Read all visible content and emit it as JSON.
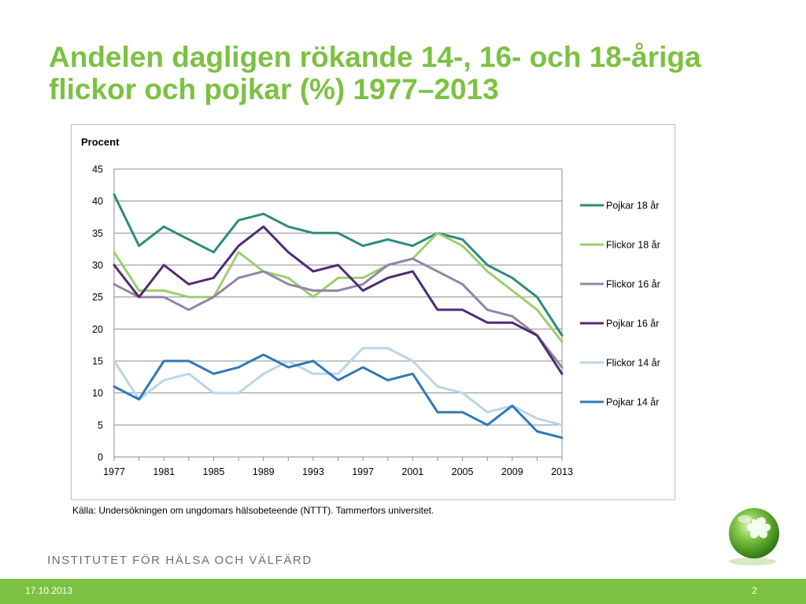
{
  "slide": {
    "title": "Andelen dagligen rökande 14-, 16- och 18-åriga flickor och pojkar (%) 1977–2013",
    "source": "Källa: Undersökningen om ungdomars hälsobeteende (NTTT). Tammerfors universitet.",
    "organization": "INSTITUTET FÖR HÄLSA OCH VÄLFÄRD",
    "footer_date": "17.10.2013",
    "page_number": "2",
    "brand_color": "#7cc142"
  },
  "chart_data": {
    "type": "line",
    "ylabel": "Procent",
    "x": [
      1977,
      1979,
      1981,
      1983,
      1985,
      1987,
      1989,
      1991,
      1993,
      1995,
      1997,
      1999,
      2001,
      2003,
      2005,
      2007,
      2009,
      2011,
      2013
    ],
    "x_tick_labels": [
      "1977",
      "1981",
      "1985",
      "1989",
      "1993",
      "1997",
      "2001",
      "2005",
      "2009",
      "2013"
    ],
    "y_ticks": [
      0,
      5,
      10,
      15,
      20,
      25,
      30,
      35,
      40,
      45
    ],
    "ylim": [
      0,
      45
    ],
    "grid": true,
    "legend_position": "right",
    "series": [
      {
        "name": "Pojkar 18 år",
        "color": "#2e8b7a",
        "values": [
          41,
          33,
          36,
          34,
          32,
          37,
          38,
          36,
          35,
          35,
          33,
          34,
          33,
          35,
          34,
          30,
          28,
          25,
          19
        ]
      },
      {
        "name": "Flickor 18 år",
        "color": "#9bcf6e",
        "values": [
          32,
          26,
          26,
          25,
          25,
          32,
          29,
          28,
          25,
          28,
          28,
          30,
          31,
          35,
          33,
          29,
          26,
          23,
          18
        ]
      },
      {
        "name": "Flickor 16 år",
        "color": "#9085a8",
        "values": [
          27,
          25,
          25,
          23,
          25,
          28,
          29,
          27,
          26,
          26,
          27,
          30,
          31,
          29,
          27,
          23,
          22,
          19,
          14
        ]
      },
      {
        "name": "Pojkar 16 år",
        "color": "#4e2c73",
        "values": [
          30,
          25,
          30,
          27,
          28,
          33,
          36,
          32,
          29,
          30,
          26,
          28,
          29,
          23,
          23,
          21,
          21,
          19,
          13
        ]
      },
      {
        "name": "Flickor 14 år",
        "color": "#b8d6e8",
        "values": [
          15,
          9,
          12,
          13,
          10,
          10,
          13,
          15,
          13,
          13,
          17,
          17,
          15,
          11,
          10,
          7,
          8,
          6,
          5
        ]
      },
      {
        "name": "Pojkar 14 år",
        "color": "#2f78b5",
        "values": [
          11,
          9,
          15,
          15,
          13,
          14,
          16,
          14,
          15,
          12,
          14,
          12,
          13,
          7,
          7,
          5,
          8,
          4,
          3
        ]
      }
    ]
  }
}
